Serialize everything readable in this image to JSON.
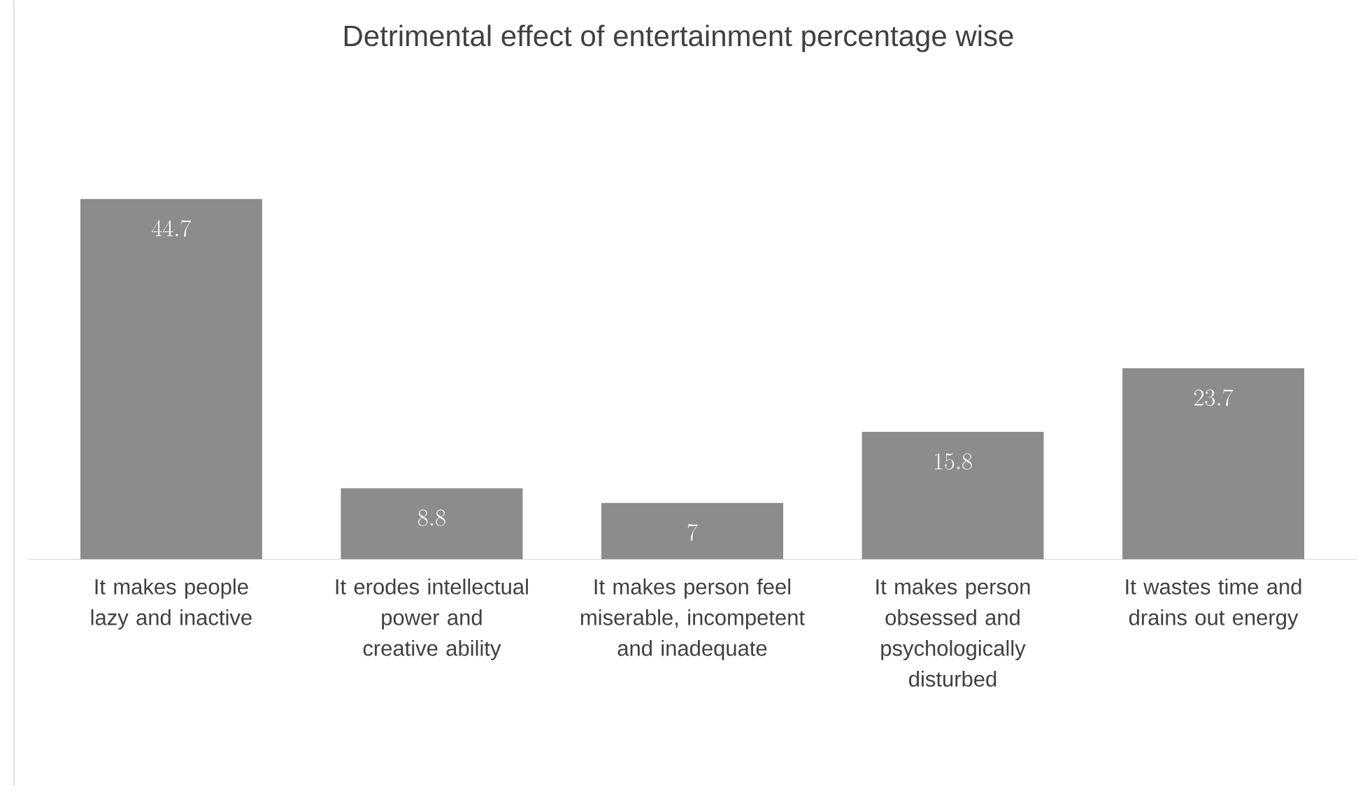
{
  "chart_data": {
    "type": "bar",
    "title": "Detrimental effect of entertainment percentage wise",
    "categories": [
      "It makes people lazy and inactive",
      "It erodes intellectual power and creative ability",
      "It makes person feel miserable, incompetent and inadequate",
      "It makes person obsessed and psychologically disturbed",
      "It wastes time and drains out energy"
    ],
    "values": [
      44.7,
      8.8,
      7,
      15.8,
      23.7
    ],
    "color": "#8c8c8c",
    "data_labels": true
  }
}
